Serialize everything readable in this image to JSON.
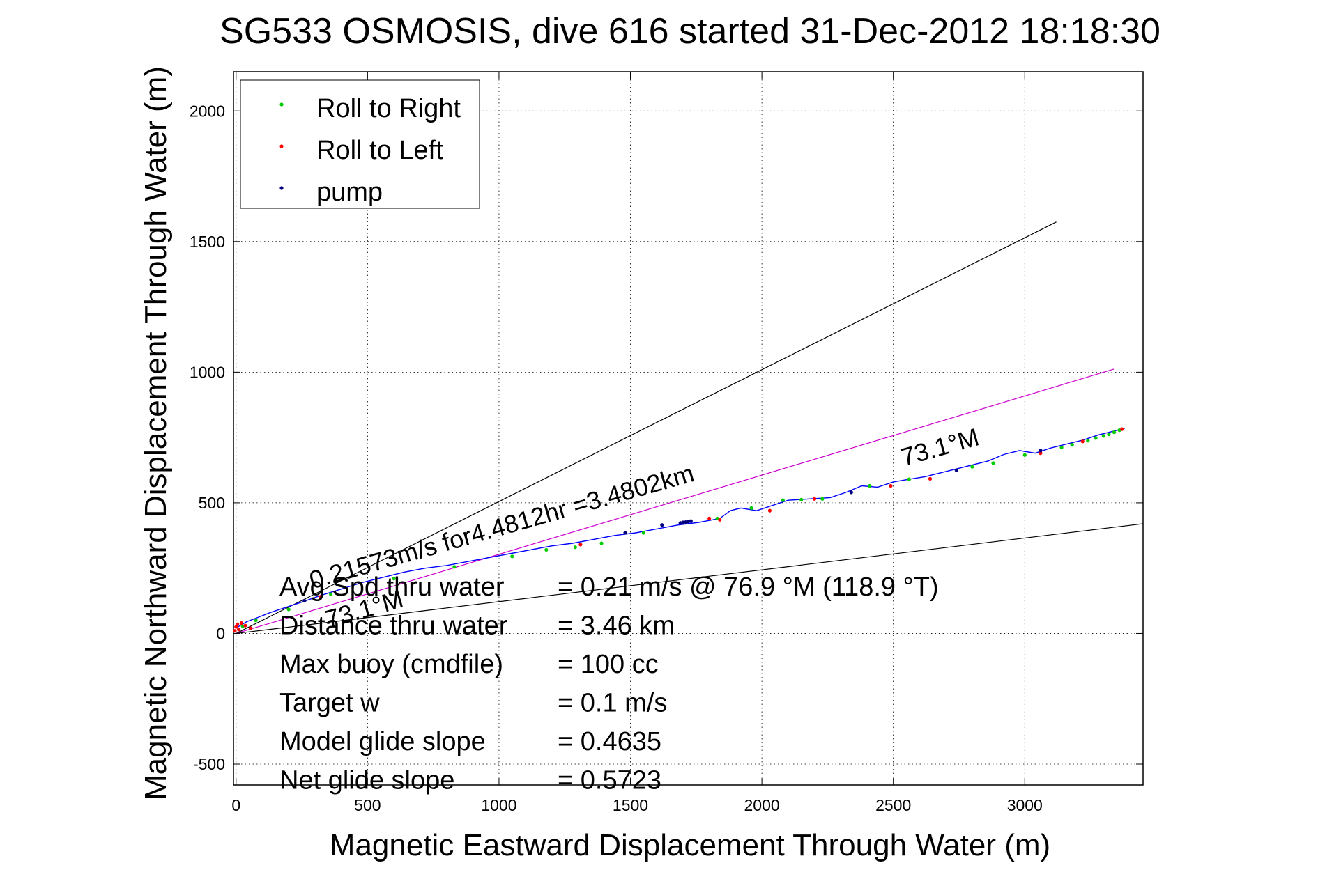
{
  "chart_data": {
    "type": "line",
    "title": "SG533 OSMOSIS, dive 616 started 31-Dec-2012 18:18:30",
    "xlabel": "Magnetic Eastward Displacement Through Water (m)",
    "ylabel": "Magnetic Northward Displacement Through Water (m)",
    "xlim": [
      -10,
      3450
    ],
    "ylim": [
      -580,
      2150
    ],
    "xticks": [
      0,
      500,
      1000,
      1500,
      2000,
      2500,
      3000
    ],
    "yticks": [
      -500,
      0,
      500,
      1000,
      1500,
      2000
    ],
    "xtick_labels": [
      "0",
      "500",
      "1000",
      "1500",
      "2000",
      "2500",
      "3000"
    ],
    "ytick_labels": [
      "-500",
      "0",
      "500",
      "1000",
      "1500",
      "2000"
    ],
    "grid": true,
    "legend_position": "top-left",
    "legend": [
      {
        "label": "Roll to Right",
        "color": "#00cc00"
      },
      {
        "label": "Roll to Left",
        "color": "#ff0000"
      },
      {
        "label": "pump",
        "color": "#000080"
      }
    ],
    "track": {
      "color": "#0000ff",
      "x": [
        0,
        15,
        40,
        80,
        130,
        190,
        250,
        320,
        400,
        480,
        560,
        640,
        720,
        800,
        880,
        960,
        1040,
        1120,
        1200,
        1280,
        1360,
        1440,
        1520,
        1600,
        1680,
        1760,
        1840,
        1880,
        1920,
        1980,
        2040,
        2100,
        2180,
        2260,
        2320,
        2380,
        2440,
        2500,
        2560,
        2620,
        2700,
        2780,
        2860,
        2920,
        2980,
        3040,
        3100,
        3160,
        3220,
        3280,
        3340,
        3380
      ],
      "y": [
        20,
        30,
        45,
        60,
        80,
        100,
        120,
        145,
        170,
        195,
        215,
        235,
        250,
        260,
        275,
        290,
        305,
        320,
        335,
        345,
        360,
        375,
        385,
        400,
        415,
        425,
        440,
        470,
        480,
        470,
        490,
        510,
        515,
        520,
        540,
        565,
        560,
        580,
        590,
        600,
        620,
        640,
        660,
        685,
        700,
        690,
        710,
        725,
        740,
        760,
        775,
        785
      ]
    },
    "roll_right": {
      "x": [
        25,
        75,
        200,
        360,
        600,
        830,
        1050,
        1180,
        1290,
        1390,
        1550,
        1830,
        1960,
        2080,
        2150,
        2230,
        2410,
        2560,
        2800,
        2880,
        3000,
        3140,
        3180,
        3240,
        3270,
        3300,
        3320,
        3340,
        3360
      ],
      "y": [
        28,
        50,
        92,
        150,
        210,
        255,
        295,
        320,
        330,
        345,
        385,
        440,
        480,
        510,
        512,
        515,
        565,
        590,
        638,
        652,
        683,
        712,
        722,
        738,
        748,
        756,
        762,
        770,
        778
      ]
    },
    "roll_left": {
      "x": [
        -5,
        0,
        5,
        10,
        20,
        35,
        55,
        320,
        1310,
        1800,
        1840,
        2030,
        2200,
        2490,
        2640,
        3060,
        3220,
        3370
      ],
      "y": [
        10,
        25,
        35,
        15,
        40,
        30,
        20,
        140,
        340,
        440,
        435,
        470,
        515,
        565,
        592,
        690,
        735,
        782
      ]
    },
    "pump": {
      "x": [
        260,
        1480,
        1620,
        1690,
        1700,
        1710,
        1720,
        1730,
        2340,
        2740,
        3060
      ],
      "y": [
        125,
        385,
        415,
        423,
        425,
        426,
        428,
        430,
        540,
        625,
        700
      ]
    },
    "reference_lines": [
      {
        "name": "",
        "color": "#000000",
        "x": [
          0,
          3120
        ],
        "y": [
          0,
          1575
        ]
      },
      {
        "name": "",
        "color": "#cc00cc",
        "x": [
          0,
          3340
        ],
        "y": [
          0,
          1012
        ]
      },
      {
        "name": "",
        "color": "#000000",
        "x": [
          0,
          3450
        ],
        "y": [
          0,
          420
        ]
      }
    ],
    "annotations": [
      {
        "text": "0.21573m/s for4.4812hr =3.4802km",
        "x": 290,
        "y": 170,
        "angle_deg": -15.8
      },
      {
        "text": "73.1°M",
        "x": 350,
        "y": 20,
        "angle_deg": -15.8
      },
      {
        "text": "73.1°M",
        "x": 2540,
        "y": 640,
        "angle_deg": -15.8
      }
    ],
    "stats": [
      {
        "label": "Avg Spd thru water",
        "value": "=  0.21 m/s @  76.9 °M (118.9 °T)"
      },
      {
        "label": "Distance thru water",
        "value": "=  3.46 km"
      },
      {
        "label": "Max buoy (cmdfile)",
        "value": "= 100 cc"
      },
      {
        "label": "Target w",
        "value": "= 0.1 m/s"
      },
      {
        "label": "Model glide slope",
        "value": "= 0.4635"
      },
      {
        "label": "Net glide slope",
        "value": "= 0.5723"
      }
    ]
  }
}
